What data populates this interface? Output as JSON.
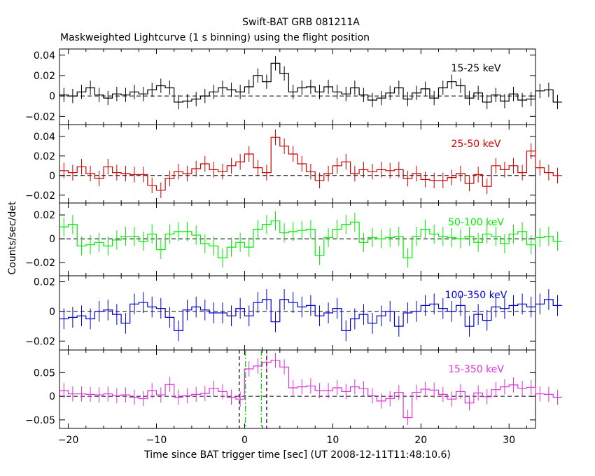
{
  "title": "Swift-BAT GRB 081211A",
  "subtitle": "Maskweighted Lightcurve (1 s binning) using the flight position",
  "chart_data": {
    "type": "line",
    "xlabel": "Time since BAT trigger time [sec] (UT 2008-12-11T11:48:10.6)",
    "ylabel": "Counts/sec/det",
    "xlim": [
      -21,
      33
    ],
    "x_ticks": [
      -20,
      -10,
      0,
      10,
      20,
      30
    ],
    "bin_start": -21,
    "bin_width": 1,
    "panels": [
      {
        "label": "15-25 keV",
        "color": "#000000",
        "ylim": [
          -0.028,
          0.046
        ],
        "y_ticks": [
          -0.02,
          0,
          0.02,
          0.04
        ],
        "y_tick_labels": [
          "−0.02",
          "0",
          "0.02",
          "0.04"
        ],
        "values": [
          0.001,
          0.0,
          0.004,
          0.008,
          0.001,
          -0.002,
          0.002,
          0.001,
          0.004,
          0.002,
          0.006,
          0.01,
          0.008,
          -0.006,
          -0.005,
          -0.003,
          0.0,
          0.004,
          0.008,
          0.006,
          0.004,
          0.009,
          0.02,
          0.014,
          0.032,
          0.022,
          0.004,
          0.008,
          0.009,
          0.004,
          0.009,
          0.004,
          0.002,
          0.008,
          0.001,
          -0.004,
          -0.002,
          0.003,
          0.008,
          -0.003,
          0.003,
          0.007,
          -0.002,
          0.008,
          0.014,
          0.01,
          -0.002,
          0.003,
          -0.006,
          0.001,
          -0.005,
          0.002,
          -0.004,
          -0.003,
          0.005,
          0.006,
          -0.006
        ],
        "errors": [
          0.007,
          0.007,
          0.007,
          0.007,
          0.007,
          0.007,
          0.007,
          0.007,
          0.007,
          0.007,
          0.007,
          0.007,
          0.007,
          0.007,
          0.007,
          0.007,
          0.007,
          0.007,
          0.007,
          0.007,
          0.007,
          0.007,
          0.007,
          0.007,
          0.007,
          0.007,
          0.007,
          0.007,
          0.007,
          0.007,
          0.007,
          0.007,
          0.007,
          0.007,
          0.007,
          0.007,
          0.007,
          0.007,
          0.007,
          0.007,
          0.007,
          0.007,
          0.007,
          0.007,
          0.007,
          0.007,
          0.007,
          0.007,
          0.007,
          0.007,
          0.007,
          0.007,
          0.007,
          0.007,
          0.007,
          0.007,
          0.007
        ]
      },
      {
        "label": "25-50 keV",
        "color": "#cc0000",
        "ylim": [
          -0.028,
          0.052
        ],
        "y_ticks": [
          -0.02,
          0,
          0.02,
          0.04
        ],
        "y_tick_labels": [
          "−0.02",
          "0",
          "0.02",
          "0.04"
        ],
        "values": [
          0.005,
          0.003,
          0.009,
          0.002,
          -0.003,
          0.009,
          0.003,
          0.002,
          0.001,
          0.001,
          -0.01,
          -0.015,
          -0.003,
          0.004,
          0.002,
          0.007,
          0.012,
          0.006,
          0.004,
          0.01,
          0.014,
          0.022,
          0.008,
          0.003,
          0.039,
          0.03,
          0.022,
          0.012,
          0.004,
          -0.005,
          0.002,
          0.01,
          0.014,
          0.002,
          0.006,
          0.004,
          0.006,
          0.005,
          0.006,
          -0.003,
          0.002,
          -0.004,
          -0.005,
          -0.005,
          -0.002,
          0.002,
          -0.008,
          0.001,
          -0.011,
          0.01,
          0.006,
          0.01,
          0.003,
          0.025,
          0.008,
          0.003,
          0.0
        ],
        "errors": [
          0.008,
          0.008,
          0.008,
          0.008,
          0.008,
          0.008,
          0.008,
          0.008,
          0.008,
          0.008,
          0.008,
          0.008,
          0.008,
          0.008,
          0.008,
          0.008,
          0.008,
          0.008,
          0.008,
          0.008,
          0.008,
          0.008,
          0.008,
          0.008,
          0.008,
          0.008,
          0.008,
          0.008,
          0.008,
          0.008,
          0.008,
          0.008,
          0.008,
          0.008,
          0.008,
          0.008,
          0.008,
          0.008,
          0.008,
          0.008,
          0.008,
          0.008,
          0.008,
          0.008,
          0.008,
          0.008,
          0.008,
          0.008,
          0.008,
          0.008,
          0.008,
          0.008,
          0.008,
          0.008,
          0.008,
          0.008,
          0.008
        ]
      },
      {
        "label": "50-100 keV",
        "color": "#00ee00",
        "ylim": [
          -0.031,
          0.03
        ],
        "y_ticks": [
          -0.02,
          0,
          0.02
        ],
        "y_tick_labels": [
          "−0.02",
          "0",
          "0.02"
        ],
        "values": [
          0.01,
          0.012,
          -0.006,
          -0.005,
          -0.003,
          -0.006,
          -0.001,
          0.002,
          0.002,
          -0.002,
          0.004,
          -0.009,
          0.004,
          0.006,
          0.006,
          0.003,
          -0.004,
          -0.006,
          -0.016,
          -0.007,
          -0.003,
          -0.007,
          0.008,
          0.012,
          0.015,
          0.005,
          0.006,
          0.007,
          0.008,
          -0.014,
          0.001,
          0.008,
          0.012,
          0.014,
          -0.003,
          0.001,
          0.0,
          0.001,
          0.002,
          -0.016,
          0.002,
          0.008,
          0.004,
          0.002,
          0.001,
          0.0,
          0.002,
          -0.003,
          0.004,
          0.002,
          -0.004,
          0.004,
          0.006,
          -0.005,
          0.001,
          0.002,
          -0.002
        ],
        "errors": [
          0.008,
          0.008,
          0.008,
          0.008,
          0.008,
          0.008,
          0.008,
          0.008,
          0.008,
          0.008,
          0.008,
          0.008,
          0.008,
          0.008,
          0.008,
          0.008,
          0.008,
          0.008,
          0.008,
          0.008,
          0.008,
          0.008,
          0.008,
          0.008,
          0.008,
          0.008,
          0.008,
          0.008,
          0.008,
          0.008,
          0.008,
          0.008,
          0.008,
          0.008,
          0.008,
          0.008,
          0.008,
          0.008,
          0.008,
          0.008,
          0.008,
          0.008,
          0.008,
          0.008,
          0.008,
          0.008,
          0.008,
          0.008,
          0.008,
          0.008,
          0.008,
          0.008,
          0.008,
          0.008,
          0.008,
          0.008,
          0.008
        ]
      },
      {
        "label": "100-350 keV",
        "color": "#0000cc",
        "ylim": [
          -0.026,
          0.024
        ],
        "y_ticks": [
          -0.02,
          0,
          0.02
        ],
        "y_tick_labels": [
          "−0.02",
          "0",
          "0.02"
        ],
        "values": [
          -0.005,
          -0.004,
          -0.003,
          -0.005,
          0.0,
          0.001,
          -0.002,
          -0.008,
          0.005,
          0.006,
          0.003,
          0.002,
          -0.004,
          -0.013,
          0.001,
          0.003,
          0.001,
          -0.001,
          -0.001,
          -0.003,
          0.002,
          -0.003,
          0.006,
          0.008,
          -0.007,
          0.008,
          0.006,
          0.003,
          0.004,
          -0.003,
          -0.001,
          0.002,
          -0.013,
          -0.005,
          -0.002,
          -0.008,
          -0.003,
          0.0,
          -0.01,
          -0.001,
          0.0,
          0.004,
          0.005,
          0.002,
          0.0,
          0.004,
          -0.01,
          -0.002,
          -0.006,
          0.003,
          0.002,
          0.004,
          0.005,
          0.003,
          0.005,
          0.008,
          0.004
        ],
        "errors": [
          0.007,
          0.007,
          0.007,
          0.007,
          0.007,
          0.007,
          0.007,
          0.007,
          0.007,
          0.007,
          0.007,
          0.007,
          0.007,
          0.007,
          0.007,
          0.007,
          0.007,
          0.007,
          0.007,
          0.007,
          0.007,
          0.007,
          0.007,
          0.007,
          0.007,
          0.007,
          0.007,
          0.007,
          0.007,
          0.007,
          0.007,
          0.007,
          0.007,
          0.007,
          0.007,
          0.007,
          0.007,
          0.007,
          0.007,
          0.007,
          0.007,
          0.007,
          0.007,
          0.007,
          0.007,
          0.007,
          0.007,
          0.007,
          0.007,
          0.007,
          0.007,
          0.007,
          0.007,
          0.007,
          0.007,
          0.007,
          0.007
        ]
      },
      {
        "label": "15-350 keV",
        "color": "#dd33dd",
        "ylim": [
          -0.068,
          0.098
        ],
        "y_ticks": [
          -0.05,
          0,
          0.05
        ],
        "y_tick_labels": [
          "−0.05",
          "0",
          "0.05"
        ],
        "values": [
          0.012,
          0.005,
          0.005,
          0.004,
          0.003,
          0.005,
          0.001,
          0.003,
          -0.002,
          -0.005,
          0.012,
          0.003,
          0.025,
          -0.002,
          0.001,
          0.004,
          0.006,
          0.017,
          0.01,
          -0.002,
          -0.006,
          0.058,
          0.064,
          0.072,
          0.076,
          0.062,
          0.018,
          0.02,
          0.022,
          0.012,
          0.012,
          0.018,
          0.01,
          0.02,
          0.016,
          0.001,
          -0.01,
          -0.005,
          0.008,
          -0.045,
          0.008,
          0.015,
          0.013,
          0.004,
          -0.006,
          0.01,
          -0.014,
          0.007,
          -0.001,
          0.014,
          0.02,
          0.024,
          0.017,
          0.019,
          0.005,
          0.004,
          -0.002
        ],
        "errors": [
          0.016,
          0.016,
          0.016,
          0.016,
          0.016,
          0.016,
          0.016,
          0.016,
          0.016,
          0.016,
          0.016,
          0.016,
          0.016,
          0.016,
          0.016,
          0.016,
          0.016,
          0.016,
          0.016,
          0.016,
          0.016,
          0.016,
          0.016,
          0.016,
          0.016,
          0.016,
          0.016,
          0.016,
          0.016,
          0.016,
          0.016,
          0.016,
          0.016,
          0.016,
          0.016,
          0.016,
          0.016,
          0.016,
          0.016,
          0.016,
          0.016,
          0.016,
          0.016,
          0.016,
          0.016,
          0.016,
          0.016,
          0.016,
          0.016,
          0.016,
          0.016,
          0.016,
          0.016,
          0.016,
          0.016,
          0.016,
          0.016
        ],
        "markers": [
          {
            "x": -0.6,
            "color": "#000000",
            "style": "dashed"
          },
          {
            "x": 2.5,
            "color": "#000000",
            "style": "dashed"
          },
          {
            "x": 0.1,
            "color": "#00cc00",
            "style": "dashdot"
          },
          {
            "x": 1.9,
            "color": "#00cc00",
            "style": "dashdot"
          }
        ]
      }
    ]
  }
}
